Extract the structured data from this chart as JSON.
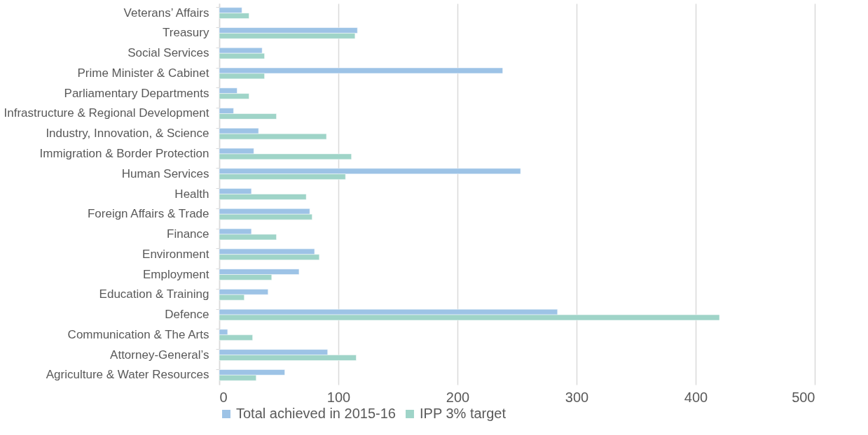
{
  "chart_data": {
    "type": "bar",
    "orientation": "horizontal",
    "categories": [
      "Veterans’ Affairs",
      "Treasury",
      "Social Services",
      "Prime Minister & Cabinet",
      "Parliamentary Departments",
      "Infrastructure & Regional Development",
      "Industry, Innovation, & Science",
      "Immigration & Border Protection",
      "Human Services",
      "Health",
      "Foreign Affairs & Trade",
      "Finance",
      "Environment",
      "Employment",
      "Education & Training",
      "Defence",
      "Communication & The Arts",
      "Attorney-General’s",
      "Agriculture & Water Resources"
    ],
    "series": [
      {
        "name": "Total achieved in 2015-16",
        "color": "#9dc3e6",
        "values": [
          19,
          116,
          36,
          238,
          15,
          12,
          33,
          29,
          253,
          27,
          76,
          27,
          80,
          67,
          41,
          284,
          7,
          91,
          55
        ]
      },
      {
        "name": "IPP 3% target",
        "color": "#9fd4c8",
        "values": [
          25,
          114,
          38,
          38,
          25,
          48,
          90,
          111,
          106,
          73,
          78,
          48,
          84,
          44,
          21,
          420,
          28,
          115,
          31
        ]
      }
    ],
    "xlim": [
      0,
      500
    ],
    "xticks": [
      0,
      100,
      200,
      300,
      400,
      500
    ],
    "grid": "x",
    "legend": "bottom"
  }
}
